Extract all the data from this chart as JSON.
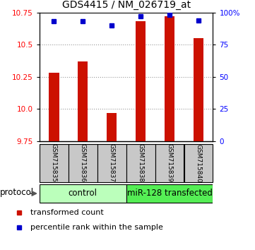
{
  "title": "GDS4415 / NM_026719_at",
  "samples": [
    "GSM715835",
    "GSM715836",
    "GSM715837",
    "GSM715838",
    "GSM715839",
    "GSM715840"
  ],
  "red_values": [
    10.28,
    10.37,
    9.97,
    10.68,
    10.72,
    10.55
  ],
  "blue_values": [
    93,
    93,
    90,
    97,
    98,
    94
  ],
  "ylim_left": [
    9.75,
    10.75
  ],
  "ylim_right": [
    0,
    100
  ],
  "yticks_left": [
    9.75,
    10.0,
    10.25,
    10.5,
    10.75
  ],
  "yticks_right": [
    0,
    25,
    50,
    75,
    100
  ],
  "ytick_labels_right": [
    "0",
    "25",
    "50",
    "75",
    "100%"
  ],
  "grid_lines": [
    10.0,
    10.25,
    10.5
  ],
  "bar_bottom": 9.75,
  "bar_width": 0.35,
  "control_color": "#bbffbb",
  "mir_color": "#55ee55",
  "protocol_label": "protocol",
  "legend_red": "transformed count",
  "legend_blue": "percentile rank within the sample",
  "red_color": "#cc1100",
  "blue_color": "#0000cc",
  "grid_color": "#999999",
  "bg_sample_box": "#c8c8c8",
  "sample_label_fontsize": 6.5,
  "title_fontsize": 10
}
